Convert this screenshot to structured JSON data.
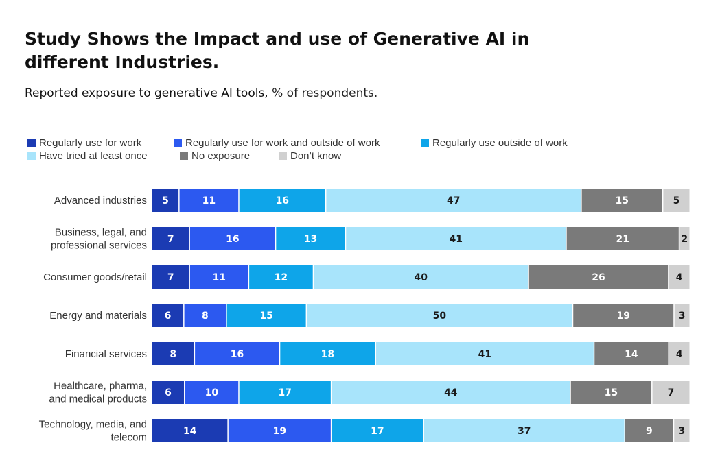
{
  "title": "Study Shows the Impact and use of Generative AI in different Industries.",
  "subtitle_lead": "Reported exposure to generative AI tools,",
  "subtitle_unit": "% of respondents.",
  "chart_data": {
    "type": "bar",
    "orientation": "horizontal-stacked-100",
    "categories": [
      [
        "Advanced industries"
      ],
      [
        "Business, legal, and",
        "professional services"
      ],
      [
        "Consumer goods/retail"
      ],
      [
        "Energy and materials"
      ],
      [
        "Financial services"
      ],
      [
        "Healthcare, pharma,",
        "and medical products"
      ],
      [
        "Technology, media, and",
        "telecom"
      ]
    ],
    "series": [
      {
        "name": "Regularly use for work",
        "color": "#1b3bb3",
        "label_color": "#ffffff",
        "values": [
          5,
          7,
          7,
          6,
          8,
          6,
          14
        ]
      },
      {
        "name": "Regularly use for work and outside of work",
        "color": "#2c59f0",
        "label_color": "#ffffff",
        "values": [
          11,
          16,
          11,
          8,
          16,
          10,
          19
        ]
      },
      {
        "name": "Regularly use outside of work",
        "color": "#0ea5e9",
        "label_color": "#ffffff",
        "values": [
          16,
          13,
          12,
          15,
          18,
          17,
          17
        ]
      },
      {
        "name": "Have tried at least once",
        "color": "#a8e4fb",
        "label_color": "#1a1a1a",
        "values": [
          47,
          41,
          40,
          50,
          41,
          44,
          37
        ]
      },
      {
        "name": "No exposure",
        "color": "#7a7a7a",
        "label_color": "#ffffff",
        "values": [
          15,
          21,
          26,
          19,
          14,
          15,
          9
        ]
      },
      {
        "name": "Don’t know",
        "color": "#d0d0d0",
        "label_color": "#1a1a1a",
        "values": [
          5,
          2,
          4,
          3,
          4,
          7,
          3
        ]
      }
    ],
    "legend_position": "top",
    "grid": false
  }
}
